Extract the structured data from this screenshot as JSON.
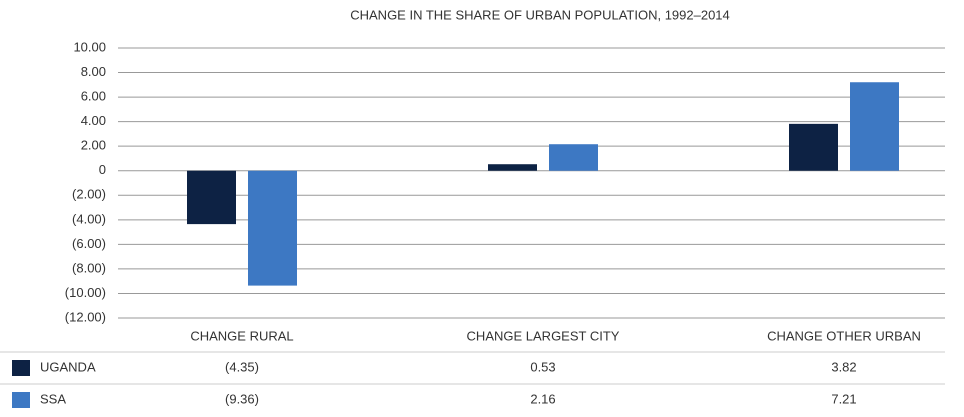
{
  "chart_data": {
    "type": "bar",
    "title": "CHANGE IN THE SHARE OF URBAN POPULATION, 1992–2014",
    "categories": [
      "CHANGE RURAL",
      "CHANGE LARGEST CITY",
      "CHANGE OTHER URBAN"
    ],
    "series": [
      {
        "name": "UGANDA",
        "color": "#0d2244",
        "values": [
          -4.35,
          0.53,
          3.82
        ],
        "value_labels": [
          "(4.35)",
          "0.53",
          "3.82"
        ]
      },
      {
        "name": "SSA",
        "color": "#3d78c3",
        "values": [
          -9.36,
          2.16,
          7.21
        ],
        "value_labels": [
          "(9.36)",
          "2.16",
          "7.21"
        ]
      }
    ],
    "ylim": [
      -12,
      10
    ],
    "yticks": [
      {
        "value": 10,
        "label": "10.00"
      },
      {
        "value": 8,
        "label": "8.00"
      },
      {
        "value": 6,
        "label": "6.00"
      },
      {
        "value": 4,
        "label": "4.00"
      },
      {
        "value": 2,
        "label": "2.00"
      },
      0,
      {
        "value": -2,
        "label": "(2.00)"
      },
      {
        "value": -4,
        "label": "(4.00)"
      },
      {
        "value": -6,
        "label": "(6.00)"
      },
      {
        "value": -8,
        "label": "(8.00)"
      },
      {
        "value": -10,
        "label": "(10.00)"
      },
      {
        "value": -12,
        "label": "(12.00)"
      }
    ],
    "grid": true
  }
}
